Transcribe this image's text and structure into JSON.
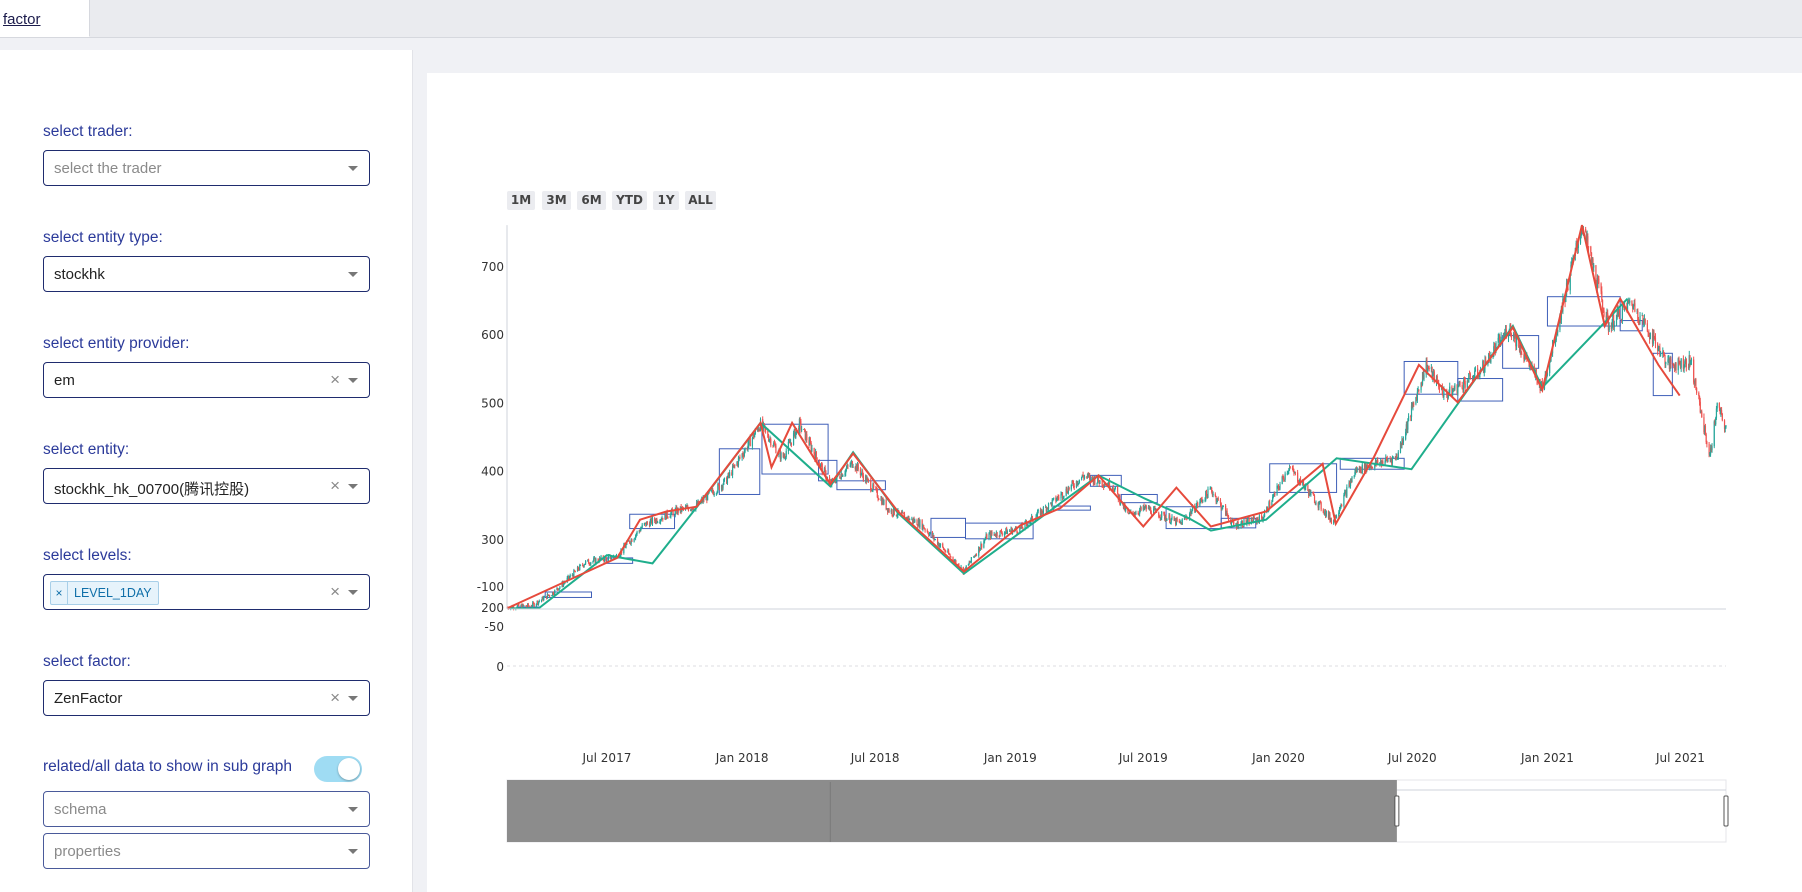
{
  "tabs": [
    {
      "label": "factor"
    }
  ],
  "sidebar": {
    "trader": {
      "label": "select trader:",
      "placeholder": "select the trader"
    },
    "entity_type": {
      "label": "select entity type:",
      "value": "stockhk"
    },
    "entity_provider": {
      "label": "select entity provider:",
      "value": "em"
    },
    "entity": {
      "label": "select entity:",
      "value": "stockhk_hk_00700(腾讯控股)"
    },
    "levels": {
      "label": "select levels:",
      "chips": [
        "LEVEL_1DAY"
      ]
    },
    "factor": {
      "label": "select factor:",
      "value": "ZenFactor"
    },
    "subgraph": {
      "label": "related/all data to show in sub graph",
      "toggle_on": true
    },
    "schema": {
      "placeholder": "schema"
    },
    "properties": {
      "placeholder": "properties"
    }
  },
  "icons": {
    "clear": "close-icon",
    "caret": "chevron-down-icon"
  },
  "colors": {
    "up": "#26a69a",
    "down": "#ef5350",
    "stroke": "#e64a3c",
    "bi_line": "#e64a3c",
    "duan_line": "#1fae8c",
    "zhongshu": "#3f5fb8"
  },
  "range_selector": [
    "1M",
    "3M",
    "6M",
    "YTD",
    "1Y",
    "ALL"
  ],
  "rangeslider": {
    "window": [
      0.73,
      1.0
    ]
  },
  "chart_data": {
    "type": "line",
    "subtype": "candlestick",
    "x_ticks": [
      "Jul 2017",
      "Jan 2018",
      "Jul 2018",
      "Jan 2019",
      "Jul 2019",
      "Jan 2020",
      "Jul 2020",
      "Jan 2021",
      "Jul 2021"
    ],
    "xlim": [
      "2017-02-15",
      "2021-09-01"
    ],
    "main": {
      "y_ticks": [
        200,
        300,
        400,
        500,
        600,
        700
      ],
      "ylim": [
        196,
        760
      ],
      "price_path": [
        [
          "2017-02-15",
          200
        ],
        [
          "2017-03-20",
          202
        ],
        [
          "2017-04-20",
          222
        ],
        [
          "2017-06-01",
          265
        ],
        [
          "2017-07-15",
          275
        ],
        [
          "2017-08-20",
          320
        ],
        [
          "2017-10-01",
          340
        ],
        [
          "2017-10-30",
          348
        ],
        [
          "2017-12-10",
          385
        ],
        [
          "2018-01-26",
          468
        ],
        [
          "2018-02-25",
          418
        ],
        [
          "2018-03-20",
          468
        ],
        [
          "2018-05-01",
          380
        ],
        [
          "2018-06-01",
          412
        ],
        [
          "2018-07-20",
          342
        ],
        [
          "2018-09-01",
          322
        ],
        [
          "2018-10-30",
          252
        ],
        [
          "2018-12-01",
          305
        ],
        [
          "2019-01-15",
          315
        ],
        [
          "2019-03-01",
          355
        ],
        [
          "2019-04-10",
          392
        ],
        [
          "2019-05-20",
          378
        ],
        [
          "2019-06-10",
          335
        ],
        [
          "2019-07-05",
          345
        ],
        [
          "2019-08-20",
          322
        ],
        [
          "2019-10-01",
          372
        ],
        [
          "2019-11-01",
          320
        ],
        [
          "2019-12-10",
          330
        ],
        [
          "2020-01-15",
          405
        ],
        [
          "2020-03-15",
          325
        ],
        [
          "2020-04-15",
          400
        ],
        [
          "2020-06-10",
          420
        ],
        [
          "2020-07-20",
          555
        ],
        [
          "2020-08-15",
          510
        ],
        [
          "2020-10-01",
          545
        ],
        [
          "2020-11-10",
          610
        ],
        [
          "2020-12-25",
          520
        ],
        [
          "2021-02-17",
          760
        ],
        [
          "2021-03-25",
          612
        ],
        [
          "2021-04-25",
          648
        ],
        [
          "2021-06-15",
          555
        ],
        [
          "2021-07-15",
          560
        ],
        [
          "2021-08-10",
          420
        ],
        [
          "2021-08-20",
          495
        ],
        [
          "2021-09-01",
          460
        ]
      ],
      "bi": [
        [
          "2017-02-15",
          198
        ],
        [
          "2017-07-15",
          272
        ],
        [
          "2017-08-15",
          328
        ],
        [
          "2017-09-20",
          340
        ],
        [
          "2017-10-31",
          347
        ],
        [
          "2018-01-26",
          470
        ],
        [
          "2018-02-10",
          405
        ],
        [
          "2018-03-10",
          470
        ],
        [
          "2018-05-01",
          380
        ],
        [
          "2018-06-01",
          425
        ],
        [
          "2018-08-01",
          340
        ],
        [
          "2018-10-30",
          252
        ],
        [
          "2019-01-15",
          320
        ],
        [
          "2019-03-10",
          345
        ],
        [
          "2019-05-01",
          393
        ],
        [
          "2019-07-01",
          318
        ],
        [
          "2019-08-15",
          375
        ],
        [
          "2019-10-01",
          318
        ],
        [
          "2019-12-15",
          340
        ],
        [
          "2020-03-01",
          410
        ],
        [
          "2020-03-19",
          322
        ],
        [
          "2020-05-10",
          420
        ],
        [
          "2020-07-10",
          555
        ],
        [
          "2020-09-01",
          500
        ],
        [
          "2020-11-15",
          610
        ],
        [
          "2020-12-25",
          518
        ],
        [
          "2021-02-17",
          760
        ],
        [
          "2021-03-20",
          612
        ],
        [
          "2021-04-10",
          652
        ],
        [
          "2021-06-01",
          555
        ],
        [
          "2021-06-30",
          510
        ]
      ],
      "duan": [
        [
          "2017-02-15",
          198
        ],
        [
          "2017-03-30",
          198
        ],
        [
          "2017-07-01",
          276
        ],
        [
          "2017-09-01",
          264
        ],
        [
          "2017-10-31",
          346
        ],
        [
          "2018-01-26",
          470
        ],
        [
          "2018-05-01",
          377
        ],
        [
          "2018-06-01",
          427
        ],
        [
          "2018-08-01",
          338
        ],
        [
          "2018-10-30",
          249
        ],
        [
          "2019-03-01",
          345
        ],
        [
          "2019-05-01",
          393
        ],
        [
          "2019-07-01",
          360
        ],
        [
          "2019-09-01",
          330
        ],
        [
          "2019-10-01",
          312
        ],
        [
          "2019-12-15",
          328
        ],
        [
          "2020-03-20",
          418
        ],
        [
          "2020-06-30",
          402
        ],
        [
          "2020-11-15",
          612
        ],
        [
          "2020-12-25",
          522
        ],
        [
          "2021-04-20",
          652
        ]
      ],
      "zhongshu": [
        [
          [
            "2017-03-01",
            "2017-03-31"
          ],
          [
            198,
            200
          ]
        ],
        [
          [
            "2017-04-08",
            "2017-06-10"
          ],
          [
            214,
            222
          ]
        ],
        [
          [
            "2017-07-01",
            "2017-08-05"
          ],
          [
            264,
            272
          ]
        ],
        [
          [
            "2017-08-01",
            "2017-10-01"
          ],
          [
            315,
            336
          ]
        ],
        [
          [
            "2017-12-01",
            "2018-01-25"
          ],
          [
            365,
            432
          ]
        ],
        [
          [
            "2018-01-28",
            "2018-04-28"
          ],
          [
            395,
            468
          ]
        ],
        [
          [
            "2018-04-15",
            "2018-05-10"
          ],
          [
            385,
            415
          ]
        ],
        [
          [
            "2018-05-10",
            "2018-07-15"
          ],
          [
            372,
            385
          ]
        ],
        [
          [
            "2018-09-15",
            "2018-11-01"
          ],
          [
            302,
            330
          ]
        ],
        [
          [
            "2018-11-01",
            "2019-02-01"
          ],
          [
            300,
            323
          ]
        ],
        [
          [
            "2019-03-01",
            "2019-04-20"
          ],
          [
            342,
            348
          ]
        ],
        [
          [
            "2019-04-20",
            "2019-06-01"
          ],
          [
            377,
            393
          ]
        ],
        [
          [
            "2019-06-01",
            "2019-07-20"
          ],
          [
            353,
            365
          ]
        ],
        [
          [
            "2019-08-01",
            "2019-10-15"
          ],
          [
            315,
            347
          ]
        ],
        [
          [
            "2019-10-15",
            "2019-12-01"
          ],
          [
            316,
            330
          ]
        ],
        [
          [
            "2019-12-20",
            "2020-03-20"
          ],
          [
            368,
            410
          ]
        ],
        [
          [
            "2020-03-25",
            "2020-06-20"
          ],
          [
            402,
            418
          ]
        ],
        [
          [
            "2020-06-20",
            "2020-09-01"
          ],
          [
            512,
            560
          ]
        ],
        [
          [
            "2020-09-01",
            "2020-11-01"
          ],
          [
            502,
            535
          ]
        ],
        [
          [
            "2020-11-01",
            "2020-12-20"
          ],
          [
            550,
            598
          ]
        ],
        [
          [
            "2021-01-01",
            "2021-04-10"
          ],
          [
            612,
            655
          ]
        ],
        [
          [
            "2021-04-10",
            "2021-05-10"
          ],
          [
            605,
            620
          ]
        ],
        [
          [
            "2021-05-25",
            "2021-06-20"
          ],
          [
            510,
            572
          ]
        ]
      ]
    },
    "sub": {
      "y_ticks": [
        0,
        -50,
        -100
      ],
      "ylim": [
        -100,
        0
      ]
    }
  }
}
